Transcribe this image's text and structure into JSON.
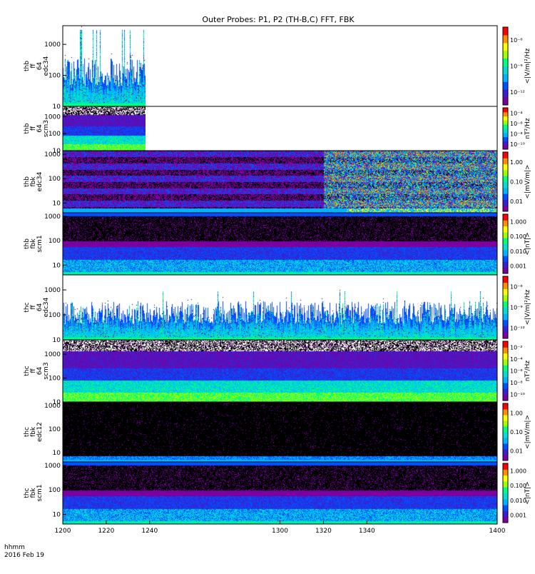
{
  "title": "Outer Probes: P1, P2 (TH-B,C) FFT, FBK",
  "time_axis": {
    "label_line1": "hhmm",
    "label_line2": "2016 Feb 19",
    "tick_labels": [
      "1200",
      "1220",
      "1240",
      "1300",
      "1320",
      "1340",
      "1400"
    ],
    "range": [
      1200,
      1400
    ]
  },
  "colors": {
    "background": "#ffffff",
    "data_gap": "#000000",
    "colormap": [
      "#ffffff",
      "#7a00a0",
      "#3b1fd0",
      "#0050ff",
      "#00b4ff",
      "#00e0d0",
      "#00ff80",
      "#a0ff00",
      "#ffff00",
      "#ff9000",
      "#ff0000"
    ]
  },
  "chart_data": [
    {
      "type": "heatmap",
      "panel_label": [
        "thb",
        "ff",
        "64",
        "edc34"
      ],
      "yticks": [
        "10",
        "100",
        "1000"
      ],
      "ylim": [
        10,
        4000
      ],
      "yscale": "log",
      "colorbar_label": "<|V/m|²/Hz",
      "colorbar_ticks": [
        "10⁻¹²",
        "10⁻⁹",
        "10⁻⁶"
      ],
      "data_end_time": 1238,
      "profile": "sparse-bursts"
    },
    {
      "type": "heatmap",
      "panel_label": [
        "thb",
        "ff",
        "64",
        "scm3"
      ],
      "yticks": [
        "10",
        "100",
        "1000"
      ],
      "ylim": [
        10,
        4000
      ],
      "yscale": "log",
      "colorbar_label": "nT²/Hz",
      "colorbar_ticks": [
        "10⁻¹⁰",
        "10⁻⁸",
        "10⁻⁶",
        "10⁻⁴"
      ],
      "data_end_time": 1238,
      "profile": "scm-dense"
    },
    {
      "type": "heatmap",
      "panel_label": [
        "thb",
        "fbk",
        "edc34"
      ],
      "yticks": [
        "10",
        "100",
        "1000"
      ],
      "ylim": [
        4,
        1400
      ],
      "yscale": "log",
      "colorbar_label": "<|mV/m|>",
      "colorbar_ticks": [
        "0.01",
        "0.10",
        "1.00"
      ],
      "data_end_time": 1400,
      "profile": "fbk-edc-active"
    },
    {
      "type": "heatmap",
      "panel_label": [
        "thb",
        "fbk",
        "scm1"
      ],
      "yticks": [
        "10",
        "100",
        "1000"
      ],
      "ylim": [
        4,
        1400
      ],
      "yscale": "log",
      "colorbar_label": "<|nT|>",
      "colorbar_ticks": [
        "0.001",
        "0.010",
        "0.100",
        "1.000"
      ],
      "data_end_time": 1400,
      "profile": "fbk-scm"
    },
    {
      "type": "heatmap",
      "panel_label": [
        "thc",
        "ff",
        "64",
        "edc34"
      ],
      "yticks": [
        "10",
        "100",
        "1000"
      ],
      "ylim": [
        10,
        4000
      ],
      "yscale": "log",
      "colorbar_label": "<|V/m|²/Hz",
      "colorbar_ticks": [
        "10⁻¹²",
        "10⁻⁹",
        "10⁻⁶"
      ],
      "data_end_time": 1400,
      "profile": "sparse-regular"
    },
    {
      "type": "heatmap",
      "panel_label": [
        "thc",
        "ff",
        "64",
        "scm3"
      ],
      "yticks": [
        "10",
        "100",
        "1000"
      ],
      "ylim": [
        10,
        4000
      ],
      "yscale": "log",
      "colorbar_label": "nT²/Hz",
      "colorbar_ticks": [
        "10⁻¹⁰",
        "10⁻⁸",
        "10⁻⁶",
        "10⁻⁴",
        "10⁻²"
      ],
      "data_end_time": 1400,
      "profile": "scm-dense"
    },
    {
      "type": "heatmap",
      "panel_label": [
        "thc",
        "fbk",
        "edc12"
      ],
      "yticks": [
        "10",
        "100",
        "1000"
      ],
      "ylim": [
        4,
        1400
      ],
      "yscale": "log",
      "colorbar_label": "<|mV/m|>",
      "colorbar_ticks": [
        "0.01",
        "0.10",
        "1.00"
      ],
      "data_end_time": 1400,
      "profile": "fbk-edc-quiet"
    },
    {
      "type": "heatmap",
      "panel_label": [
        "thc",
        "fbk",
        "scm1"
      ],
      "yticks": [
        "10",
        "100",
        "1000"
      ],
      "ylim": [
        4,
        1400
      ],
      "yscale": "log",
      "colorbar_label": "<|nT|>",
      "colorbar_ticks": [
        "0.001",
        "0.010",
        "0.100",
        "1.000"
      ],
      "data_end_time": 1400,
      "profile": "fbk-scm"
    }
  ]
}
